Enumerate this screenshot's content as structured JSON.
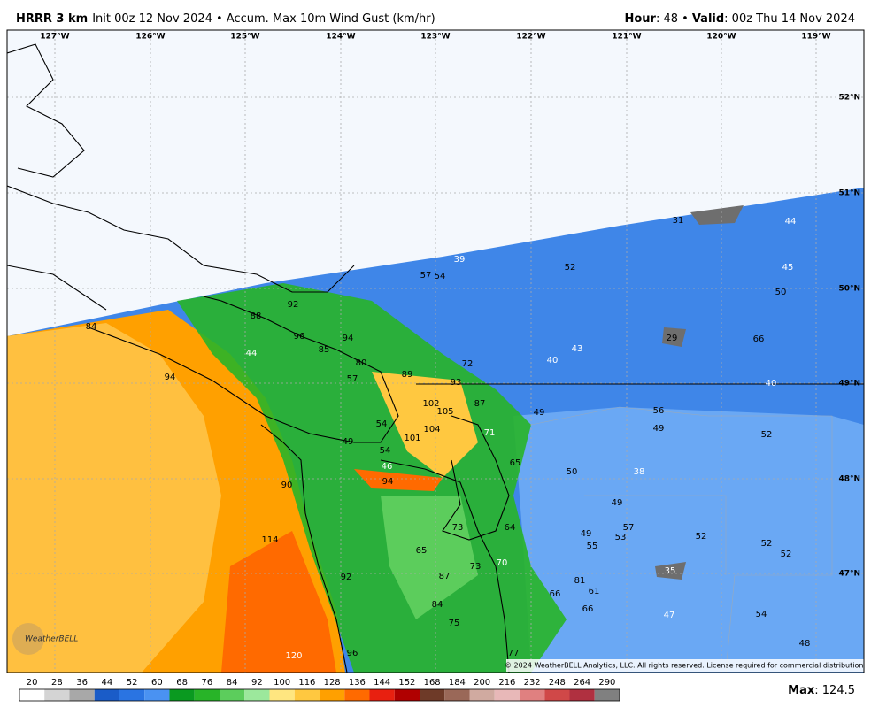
{
  "header": {
    "model": "HRRR 3 km",
    "subtitle": "Init 00z 12 Nov 2024 • Accum. Max 10m Wind Gust (km/hr)",
    "hour_label": "Hour",
    "hour_value": ": 48 •",
    "valid_label": "Valid",
    "valid_value": ": 00z Thu 14 Nov 2024"
  },
  "map": {
    "longitudes": [
      "127°W",
      "126°W",
      "125°W",
      "124°W",
      "123°W",
      "122°W",
      "121°W",
      "120°W",
      "119°W"
    ],
    "latitudes": [
      "52°N",
      "51°N",
      "50°N",
      "49°N",
      "48°N",
      "47°N"
    ],
    "labels": [
      {
        "value": 31,
        "color": "#000000"
      },
      {
        "value": 44,
        "color": "#ffffff"
      },
      {
        "value": 39,
        "color": "#ffffff"
      },
      {
        "value": 52,
        "color": "#000000"
      },
      {
        "value": 57,
        "color": "#000000"
      },
      {
        "value": 54,
        "color": "#000000"
      },
      {
        "value": 45,
        "color": "#ffffff"
      },
      {
        "value": 50,
        "color": "#000000"
      },
      {
        "value": 92,
        "color": "#000000"
      },
      {
        "value": 88,
        "color": "#000000"
      },
      {
        "value": 84,
        "color": "#000000"
      },
      {
        "value": 96,
        "color": "#000000"
      },
      {
        "value": 94,
        "color": "#000000"
      },
      {
        "value": 85,
        "color": "#000000"
      },
      {
        "value": 29,
        "color": "#000000"
      },
      {
        "value": 66,
        "color": "#000000"
      },
      {
        "value": 44,
        "color": "#ffffff"
      },
      {
        "value": 80,
        "color": "#000000"
      },
      {
        "value": 43,
        "color": "#ffffff"
      },
      {
        "value": 40,
        "color": "#ffffff"
      },
      {
        "value": 72,
        "color": "#000000"
      },
      {
        "value": 89,
        "color": "#000000"
      },
      {
        "value": 57,
        "color": "#000000"
      },
      {
        "value": 93,
        "color": "#000000"
      },
      {
        "value": 94,
        "color": "#000000"
      },
      {
        "value": 40,
        "color": "#ffffff"
      },
      {
        "value": 87,
        "color": "#000000"
      },
      {
        "value": 102,
        "color": "#000000"
      },
      {
        "value": 105,
        "color": "#000000"
      },
      {
        "value": 56,
        "color": "#000000"
      },
      {
        "value": 49,
        "color": "#000000"
      },
      {
        "value": 54,
        "color": "#000000"
      },
      {
        "value": 104,
        "color": "#000000"
      },
      {
        "value": 71,
        "color": "#ffffff"
      },
      {
        "value": 49,
        "color": "#000000"
      },
      {
        "value": 52,
        "color": "#000000"
      },
      {
        "value": 101,
        "color": "#000000"
      },
      {
        "value": 49,
        "color": "#000000"
      },
      {
        "value": 54,
        "color": "#000000"
      },
      {
        "value": 65,
        "color": "#000000"
      },
      {
        "value": 46,
        "color": "#ffffff"
      },
      {
        "value": 50,
        "color": "#000000"
      },
      {
        "value": 38,
        "color": "#ffffff"
      },
      {
        "value": 94,
        "color": "#000000"
      },
      {
        "value": 90,
        "color": "#000000"
      },
      {
        "value": 49,
        "color": "#000000"
      },
      {
        "value": 64,
        "color": "#000000"
      },
      {
        "value": 73,
        "color": "#000000"
      },
      {
        "value": 57,
        "color": "#000000"
      },
      {
        "value": 49,
        "color": "#000000"
      },
      {
        "value": 53,
        "color": "#000000"
      },
      {
        "value": 52,
        "color": "#000000"
      },
      {
        "value": 114,
        "color": "#000000"
      },
      {
        "value": 55,
        "color": "#000000"
      },
      {
        "value": 52,
        "color": "#000000"
      },
      {
        "value": 52,
        "color": "#000000"
      },
      {
        "value": 65,
        "color": "#000000"
      },
      {
        "value": 73,
        "color": "#000000"
      },
      {
        "value": 70,
        "color": "#ffffff"
      },
      {
        "value": 35,
        "color": "#ffffff"
      },
      {
        "value": 92,
        "color": "#000000"
      },
      {
        "value": 87,
        "color": "#000000"
      },
      {
        "value": 81,
        "color": "#000000"
      },
      {
        "value": 61,
        "color": "#000000"
      },
      {
        "value": 66,
        "color": "#000000"
      },
      {
        "value": 84,
        "color": "#000000"
      },
      {
        "value": 66,
        "color": "#000000"
      },
      {
        "value": 47,
        "color": "#ffffff"
      },
      {
        "value": 54,
        "color": "#000000"
      },
      {
        "value": 75,
        "color": "#000000"
      },
      {
        "value": 48,
        "color": "#000000"
      },
      {
        "value": 120,
        "color": "#ffffff"
      },
      {
        "value": 96,
        "color": "#000000"
      },
      {
        "value": 77,
        "color": "#000000"
      }
    ],
    "logo": "WeatherBELL",
    "copyright": "© 2024 WeatherBELL Analytics, LLC. All rights reserved. License required for commercial distribution."
  },
  "colorbar": {
    "labels": [
      20,
      28,
      36,
      44,
      52,
      60,
      68,
      76,
      84,
      92,
      100,
      116,
      128,
      136,
      144,
      152,
      168,
      184,
      200,
      216,
      232,
      248,
      264,
      290
    ],
    "colors": [
      "#ffffff",
      "#d4d4d4",
      "#a8a8a8",
      "#1a5cc8",
      "#2a74e2",
      "#4a92f2",
      "#0a9a20",
      "#28b428",
      "#5ccd5c",
      "#9ce89c",
      "#ffe680",
      "#ffc840",
      "#ffa000",
      "#ff6a00",
      "#e82010",
      "#b00000",
      "#6e3a28",
      "#9a6858",
      "#d0aaa0",
      "#e8b8b8",
      "#e08080",
      "#d04848",
      "#b03040",
      "#808080"
    ]
  },
  "footer": {
    "max_label": "Max",
    "max_value": ": 124.5"
  }
}
